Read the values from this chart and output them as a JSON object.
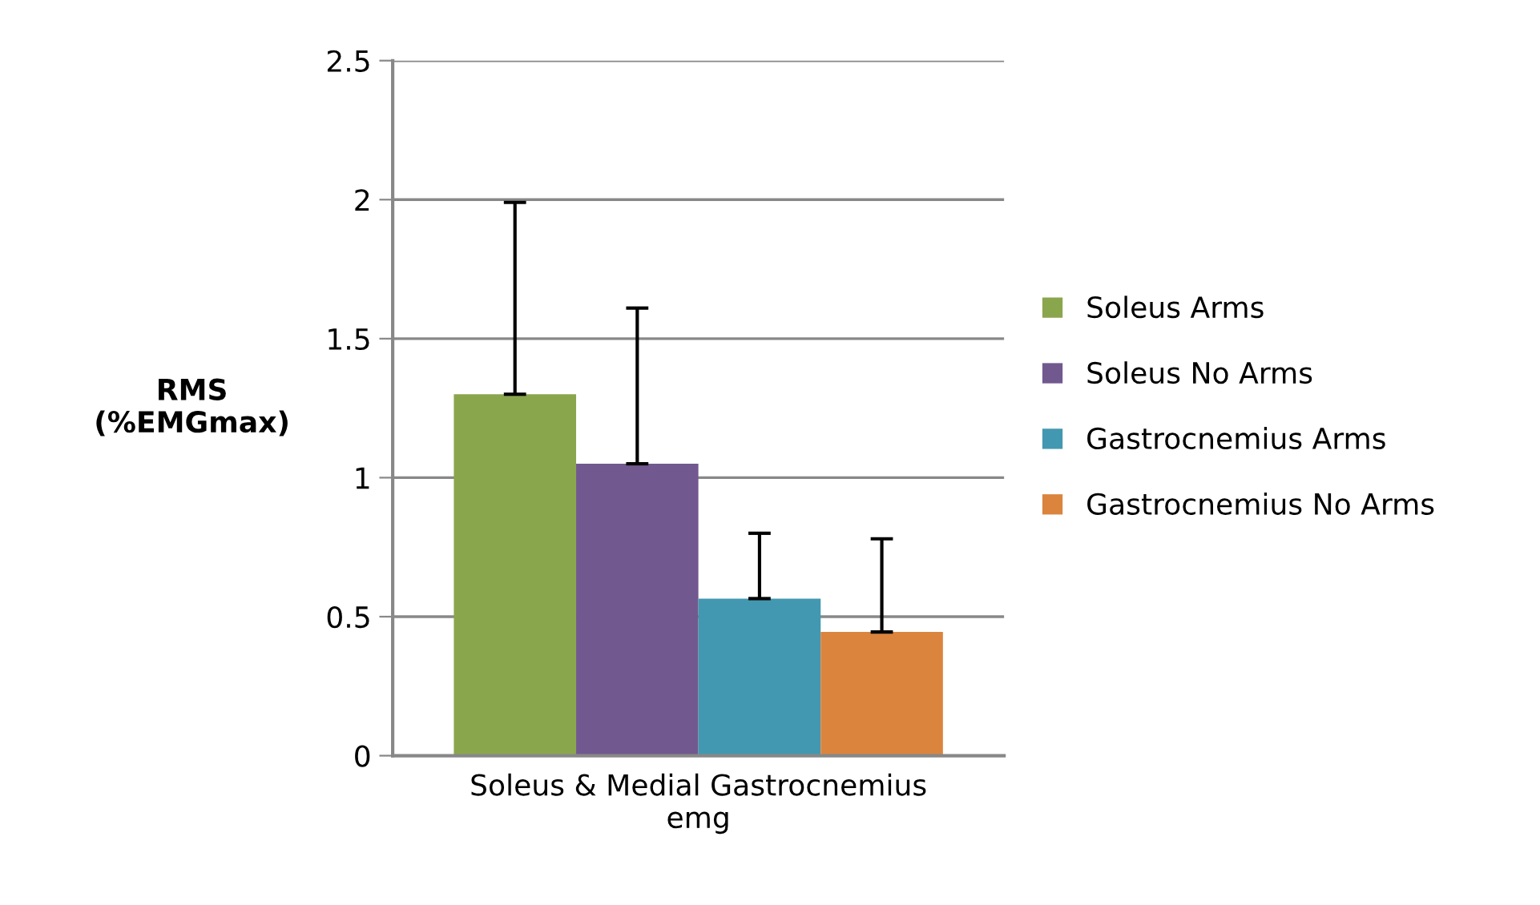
{
  "chart_data": {
    "type": "bar",
    "ylabel": "RMS\n(%EMGmax)",
    "categories": [
      "Soleus & Medial Gastrocnemius\nemg"
    ],
    "series": [
      {
        "name": "Soleus Arms",
        "color": "#8aa64d",
        "values": [
          1.3
        ],
        "errors": [
          [
            1.3,
            1.99
          ]
        ]
      },
      {
        "name": "Soleus No Arms",
        "color": "#71598f",
        "values": [
          1.05
        ],
        "errors": [
          [
            1.05,
            1.61
          ]
        ]
      },
      {
        "name": "Gastrocnemius Arms",
        "color": "#4298b0",
        "values": [
          0.565
        ],
        "errors": [
          [
            0.565,
            0.8
          ]
        ]
      },
      {
        "name": "Gastrocnemius No Arms",
        "color": "#db843e",
        "values": [
          0.445
        ],
        "errors": [
          [
            0.445,
            0.78
          ]
        ]
      }
    ],
    "ylim": [
      0,
      2.5
    ],
    "yticks": [
      0,
      0.5,
      1,
      1.5,
      2,
      2.5
    ],
    "grid": "y",
    "legend": "right"
  }
}
